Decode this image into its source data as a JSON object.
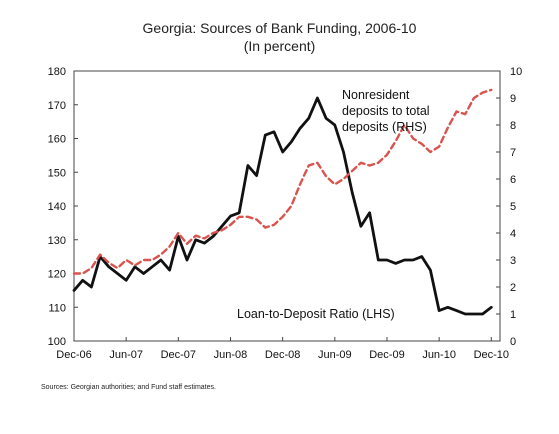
{
  "chart_data": {
    "type": "line",
    "title": "Georgia: Sources of Bank Funding, 2006-10",
    "subtitle": "(In percent)",
    "x_tick_labels": [
      "Dec-06",
      "Jun-07",
      "Dec-07",
      "Jun-08",
      "Dec-08",
      "Jun-09",
      "Dec-09",
      "Jun-10",
      "Dec-10"
    ],
    "x_range": [
      0,
      49
    ],
    "left_axis": {
      "ylim": [
        100,
        180
      ],
      "ticks": [
        "100",
        "110",
        "120",
        "130",
        "140",
        "150",
        "160",
        "170",
        "180"
      ]
    },
    "right_axis": {
      "ylim": [
        0,
        10
      ],
      "ticks": [
        "0",
        "1",
        "2",
        "3",
        "4",
        "5",
        "6",
        "7",
        "8",
        "9",
        "10"
      ]
    },
    "series": [
      {
        "name": "Loan-to-Deposit Ratio (LHS)",
        "axis": "left",
        "color": "#111111",
        "style": "solid",
        "x": [
          0,
          1,
          2,
          3,
          4,
          5,
          6,
          7,
          8,
          9,
          10,
          11,
          12,
          13,
          14,
          15,
          16,
          17,
          18,
          19,
          20,
          21,
          22,
          23,
          24,
          25,
          26,
          27,
          28,
          29,
          30,
          31,
          32,
          33,
          34,
          35,
          36,
          37,
          38,
          39,
          40,
          41,
          42,
          43,
          44,
          45,
          46,
          47,
          48
        ],
        "y": [
          115,
          118,
          116,
          125,
          122,
          120,
          118,
          122,
          120,
          122,
          124,
          121,
          131,
          124,
          130,
          129,
          131,
          134,
          137,
          138,
          152,
          149,
          161,
          162,
          156,
          159,
          163,
          166,
          172,
          166,
          164,
          156,
          144,
          134,
          138,
          124,
          124,
          123,
          124,
          124,
          125,
          121,
          109,
          110,
          109,
          108,
          108,
          108,
          110
        ]
      },
      {
        "name": "Nonresident deposits to total deposits (RHS)",
        "axis": "right",
        "color": "#d9534f",
        "style": "dashed",
        "x": [
          0,
          1,
          2,
          3,
          4,
          5,
          6,
          7,
          8,
          9,
          10,
          11,
          12,
          13,
          14,
          15,
          16,
          17,
          18,
          19,
          20,
          21,
          22,
          23,
          24,
          25,
          26,
          27,
          28,
          29,
          30,
          31,
          32,
          33,
          34,
          35,
          36,
          37,
          38,
          39,
          40,
          41,
          42,
          43,
          44,
          45,
          46,
          47,
          48
        ],
        "y": [
          2.5,
          2.5,
          2.7,
          3.2,
          2.9,
          2.7,
          3.0,
          2.8,
          3.0,
          3.0,
          3.2,
          3.5,
          4.0,
          3.6,
          3.9,
          3.8,
          4.0,
          4.1,
          4.3,
          4.6,
          4.6,
          4.5,
          4.2,
          4.3,
          4.6,
          5.0,
          5.8,
          6.5,
          6.6,
          6.1,
          5.8,
          6.0,
          6.3,
          6.6,
          6.5,
          6.6,
          6.9,
          7.4,
          8.0,
          7.5,
          7.3,
          7.0,
          7.2,
          7.9,
          8.5,
          8.4,
          9.0,
          9.2,
          9.3
        ]
      }
    ],
    "annotations": {
      "rhs_line1": "Nonresident",
      "rhs_line2": "deposits to total",
      "rhs_line3": "deposits (RHS)",
      "lhs_label": "Loan-to-Deposit Ratio (LHS)"
    }
  },
  "source": "Sources: Georgian authorities; and Fund staff estimates."
}
